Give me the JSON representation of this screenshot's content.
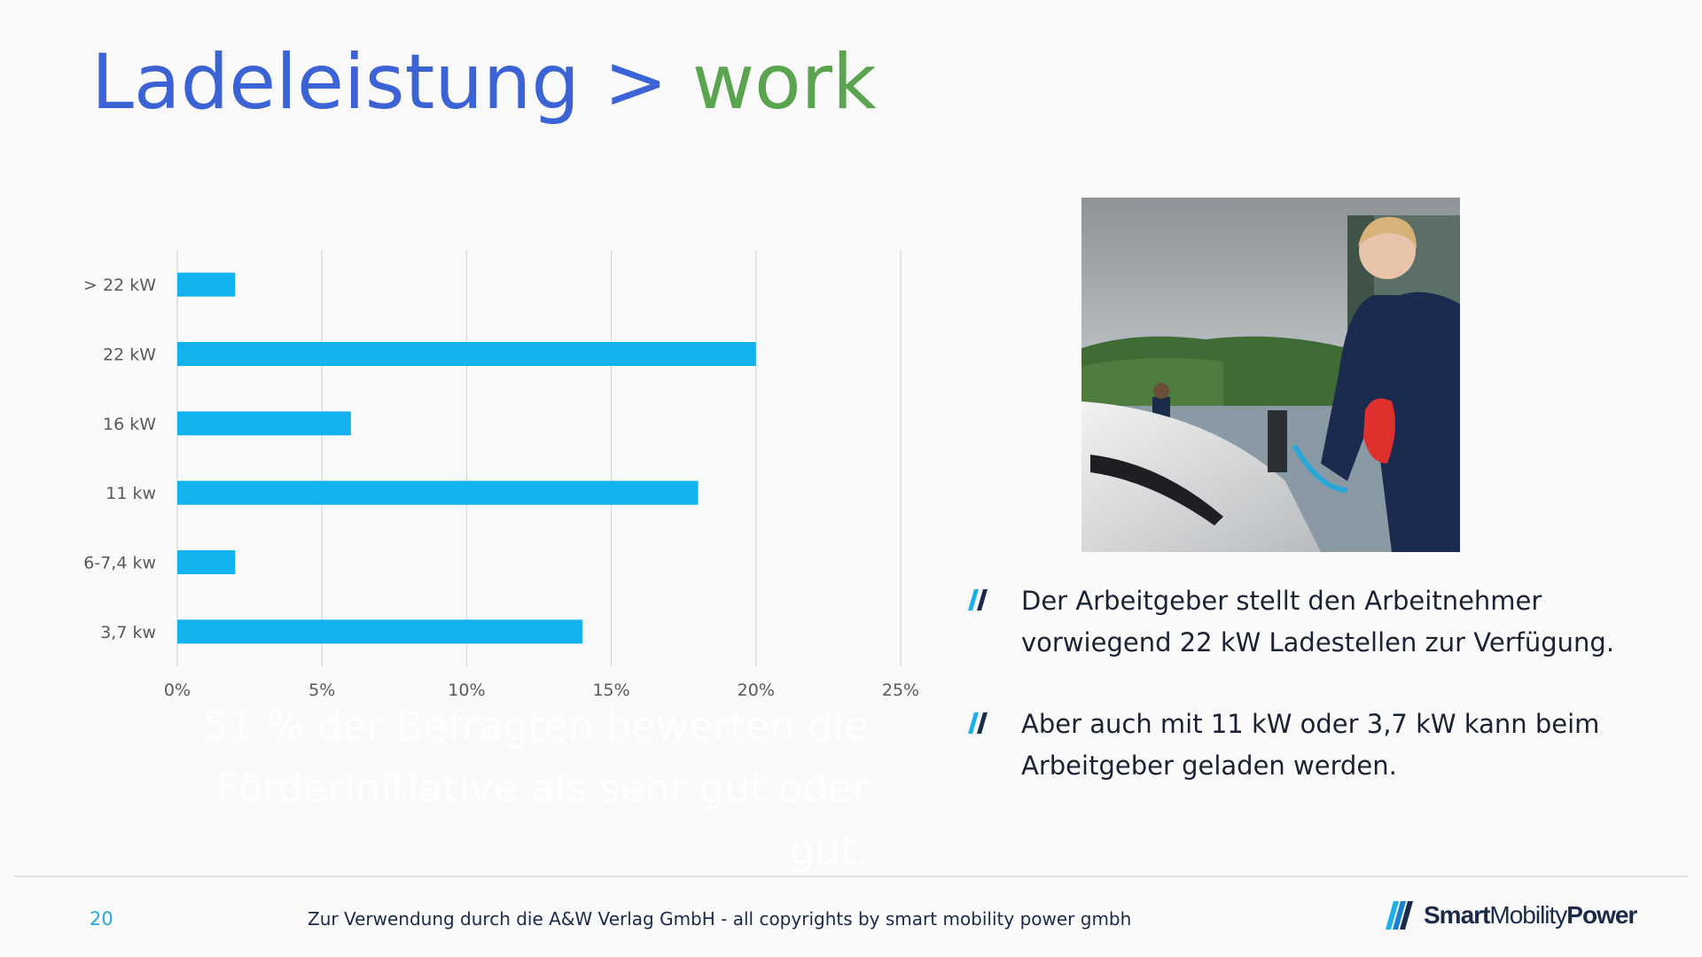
{
  "title": {
    "main": "Ladeleistung >",
    "accent": "work"
  },
  "colors": {
    "title_main": "#3b63d6",
    "title_accent": "#5aa34f",
    "bar": "#13b1ee",
    "page_number": "#29a8e0"
  },
  "chart_data": {
    "type": "bar",
    "orientation": "horizontal",
    "categories": [
      "> 22 kW",
      "22 kW",
      "16 kW",
      "11 kw",
      "6-7,4 kw",
      "3,7 kw"
    ],
    "values": [
      2,
      20,
      6,
      18,
      2,
      14
    ],
    "x_ticks": [
      "0%",
      "5%",
      "10%",
      "15%",
      "20%",
      "25%"
    ],
    "xlim": [
      0,
      25
    ],
    "grid": "vertical",
    "legend": "none",
    "title": "",
    "xlabel": "",
    "ylabel": ""
  },
  "ghost_text": {
    "line1": "51 % der Befragten bewerten die",
    "line2": "Förderinitiative als sehr gut oder gut."
  },
  "photo": {
    "icon": "woman-charging-car-photo"
  },
  "bullets": [
    {
      "icon": "double-slash-icon",
      "text": "Der Arbeitgeber stellt den Arbeitnehmer vorwiegend 22 kW Ladestellen zur Verfügung."
    },
    {
      "icon": "double-slash-icon",
      "text": "Aber auch mit 11 kW oder 3,7 kW kann beim Arbeitgeber geladen werden."
    }
  ],
  "footer": {
    "page_number": "20",
    "text": "Zur Verwendung durch die A&W Verlag GmbH  - all copyrights by smart mobility power gmbh",
    "logo": {
      "part1": "Smart",
      "part2": "Mobility",
      "part3": "Power"
    }
  }
}
